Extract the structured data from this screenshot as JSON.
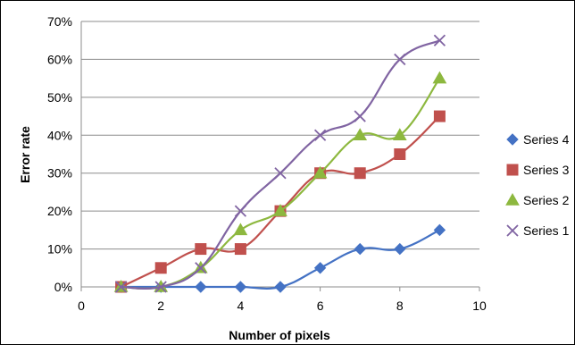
{
  "chart_data": {
    "type": "line",
    "xlabel": "Number of pixels",
    "ylabel": "Error rate",
    "xlim": [
      0,
      10
    ],
    "ylim": [
      0,
      0.7
    ],
    "x_ticks": [
      "0",
      "2",
      "4",
      "6",
      "8",
      "10"
    ],
    "y_ticks": [
      "0%",
      "10%",
      "20%",
      "30%",
      "40%",
      "50%",
      "60%",
      "70%"
    ],
    "grid": "horizontal",
    "legend_position": "right",
    "series": [
      {
        "name": "Series 4",
        "marker": "diamond",
        "color": "#4472C4",
        "x": [
          1,
          2,
          3,
          4,
          5,
          6,
          7,
          8,
          9
        ],
        "y": [
          0,
          0,
          0,
          0,
          0,
          0.05,
          0.1,
          0.1,
          0.15
        ]
      },
      {
        "name": "Series 3",
        "marker": "square",
        "color": "#C0504D",
        "x": [
          1,
          2,
          3,
          4,
          5,
          6,
          7,
          8,
          9
        ],
        "y": [
          0,
          0.05,
          0.1,
          0.1,
          0.2,
          0.3,
          0.3,
          0.35,
          0.45
        ]
      },
      {
        "name": "Series 2",
        "marker": "triangle",
        "color": "#8DB83F",
        "x": [
          1,
          2,
          3,
          4,
          5,
          6,
          7,
          8,
          9
        ],
        "y": [
          0,
          0,
          0.05,
          0.15,
          0.2,
          0.3,
          0.4,
          0.4,
          0.55
        ]
      },
      {
        "name": "Series 1",
        "marker": "x",
        "color": "#8064A2",
        "x": [
          1,
          2,
          3,
          4,
          5,
          6,
          7,
          8,
          9
        ],
        "y": [
          0,
          0,
          0.05,
          0.2,
          0.3,
          0.4,
          0.45,
          0.6,
          0.65
        ]
      }
    ]
  }
}
